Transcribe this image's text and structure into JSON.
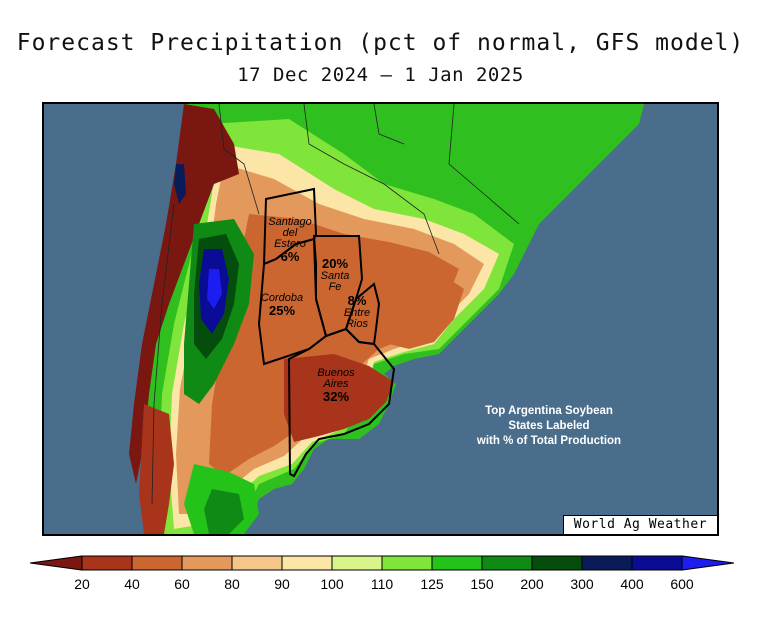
{
  "header": {
    "title": "Forecast Precipitation (pct of normal, GFS model)",
    "subtitle": "17 Dec 2024 — 1 Jan 2025"
  },
  "states": [
    {
      "name_lines": [
        "Santiago",
        "del",
        "Estero"
      ],
      "pct": "6%"
    },
    {
      "name_lines": [
        "Santa",
        "Fe"
      ],
      "pct": "20%"
    },
    {
      "name_lines": [
        "Cordoba"
      ],
      "pct": "25%"
    },
    {
      "name_lines": [
        "Entre",
        "Rios"
      ],
      "pct": "8%"
    },
    {
      "name_lines": [
        "Buenos",
        "Aires"
      ],
      "pct": "32%"
    }
  ],
  "note": {
    "line1": "Top Argentina Soybean",
    "line2": "States Labeled",
    "line3": "with % of Total Production"
  },
  "credit": "World Ag Weather",
  "legend": {
    "ticks": [
      "20",
      "40",
      "60",
      "80",
      "90",
      "100",
      "110",
      "125",
      "150",
      "200",
      "300",
      "400",
      "600"
    ],
    "colors": [
      "#7a1710",
      "#a8341c",
      "#cc6630",
      "#e3985c",
      "#f4c689",
      "#fbe6a8",
      "#d9f58a",
      "#7fe53a",
      "#24c31a",
      "#0f8a14",
      "#054d0c",
      "#0a1b5a",
      "#0a0c96",
      "#1d1df2"
    ]
  },
  "colors": {
    "ocean": "#4a6d8c"
  }
}
